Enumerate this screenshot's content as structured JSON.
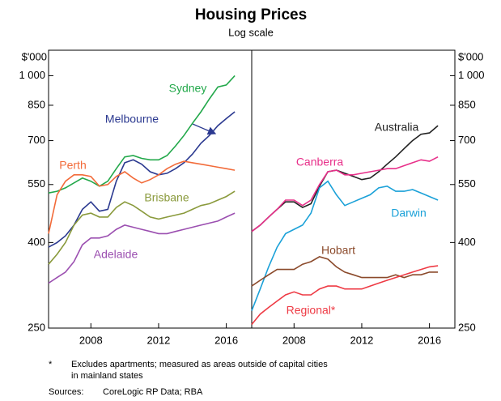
{
  "title": "Housing Prices",
  "subtitle": "Log scale",
  "y_unit": "$'000",
  "footnote_marker": "*",
  "footnote": [
    "Excludes apartments; measured as areas outside of capital cities",
    "in mainland states"
  ],
  "sources_label": "Sources:",
  "sources": "CoreLogic RP Data; RBA",
  "chart_data": [
    {
      "type": "line",
      "log_scale": true,
      "x": [
        2005.5,
        2006,
        2006.5,
        2007,
        2007.5,
        2008,
        2008.5,
        2009,
        2009.5,
        2010,
        2010.5,
        2011,
        2011.5,
        2012,
        2012.5,
        2013,
        2013.5,
        2014,
        2014.5,
        2015,
        2015.5,
        2016,
        2016.5
      ],
      "xlim": [
        2005.5,
        2017.5
      ],
      "xticks": [
        2008,
        2012,
        2016
      ],
      "ylim": [
        250,
        1150
      ],
      "yticks": [
        250,
        400,
        550,
        700,
        850,
        {
          "value": 1000,
          "label": "1 000"
        }
      ],
      "series": [
        {
          "name": "Sydney",
          "color": "#22a84a",
          "values": [
            525,
            530,
            540,
            555,
            570,
            560,
            545,
            560,
            600,
            640,
            645,
            635,
            630,
            630,
            645,
            680,
            720,
            770,
            820,
            880,
            940,
            950,
            1000
          ]
        },
        {
          "name": "Melbourne",
          "color": "#2b3990",
          "values": [
            390,
            400,
            415,
            440,
            480,
            500,
            475,
            480,
            560,
            620,
            630,
            615,
            590,
            580,
            585,
            600,
            620,
            650,
            690,
            720,
            760,
            790,
            820
          ]
        },
        {
          "name": "Perth",
          "color": "#f26b3a",
          "values": [
            420,
            520,
            560,
            580,
            580,
            575,
            545,
            550,
            575,
            590,
            570,
            555,
            565,
            580,
            600,
            615,
            625,
            620,
            615,
            610,
            605,
            600,
            595
          ]
        },
        {
          "name": "Brisbane",
          "color": "#8a9a3c",
          "values": [
            355,
            375,
            400,
            440,
            465,
            470,
            460,
            460,
            485,
            500,
            490,
            475,
            460,
            455,
            460,
            465,
            470,
            480,
            490,
            495,
            505,
            515,
            530
          ]
        },
        {
          "name": "Adelaide",
          "color": "#9b4fb0",
          "values": [
            320,
            330,
            340,
            360,
            395,
            410,
            410,
            415,
            430,
            440,
            435,
            430,
            425,
            420,
            420,
            425,
            430,
            435,
            440,
            445,
            450,
            460,
            470
          ]
        }
      ]
    },
    {
      "type": "line",
      "log_scale": true,
      "x": [
        2005.5,
        2006,
        2006.5,
        2007,
        2007.5,
        2008,
        2008.5,
        2009,
        2009.5,
        2010,
        2010.5,
        2011,
        2011.5,
        2012,
        2012.5,
        2013,
        2013.5,
        2014,
        2014.5,
        2015,
        2015.5,
        2016,
        2016.5
      ],
      "xlim": [
        2005.5,
        2017.5
      ],
      "xticks": [
        2008,
        2012,
        2016
      ],
      "ylim": [
        250,
        1150
      ],
      "yticks": [
        250,
        400,
        550,
        700,
        850,
        {
          "value": 1000,
          "label": "1 000"
        }
      ],
      "series": [
        {
          "name": "Australia",
          "color": "#222222",
          "values": [
            425,
            440,
            460,
            480,
            500,
            500,
            485,
            495,
            545,
            590,
            595,
            585,
            575,
            565,
            570,
            590,
            615,
            640,
            670,
            700,
            725,
            730,
            760
          ]
        },
        {
          "name": "Canberra",
          "color": "#e8308a",
          "values": [
            425,
            440,
            460,
            480,
            505,
            505,
            490,
            505,
            550,
            590,
            595,
            580,
            580,
            585,
            590,
            595,
            600,
            600,
            610,
            620,
            630,
            625,
            640
          ]
        },
        {
          "name": "Darwin",
          "color": "#1ba1d8",
          "values": [
            275,
            310,
            350,
            390,
            420,
            430,
            440,
            470,
            540,
            560,
            520,
            490,
            500,
            510,
            520,
            540,
            545,
            530,
            530,
            535,
            525,
            515,
            505
          ]
        },
        {
          "name": "Hobart",
          "color": "#8b4a2b",
          "values": [
            315,
            325,
            335,
            345,
            345,
            345,
            355,
            360,
            370,
            365,
            350,
            340,
            335,
            330,
            330,
            330,
            330,
            335,
            330,
            335,
            335,
            340,
            340
          ]
        },
        {
          "name": "Regional*",
          "color": "#ee3a44",
          "values": [
            255,
            270,
            280,
            290,
            300,
            305,
            300,
            300,
            310,
            315,
            315,
            310,
            310,
            310,
            315,
            320,
            325,
            330,
            335,
            340,
            345,
            350,
            352
          ]
        }
      ]
    }
  ]
}
